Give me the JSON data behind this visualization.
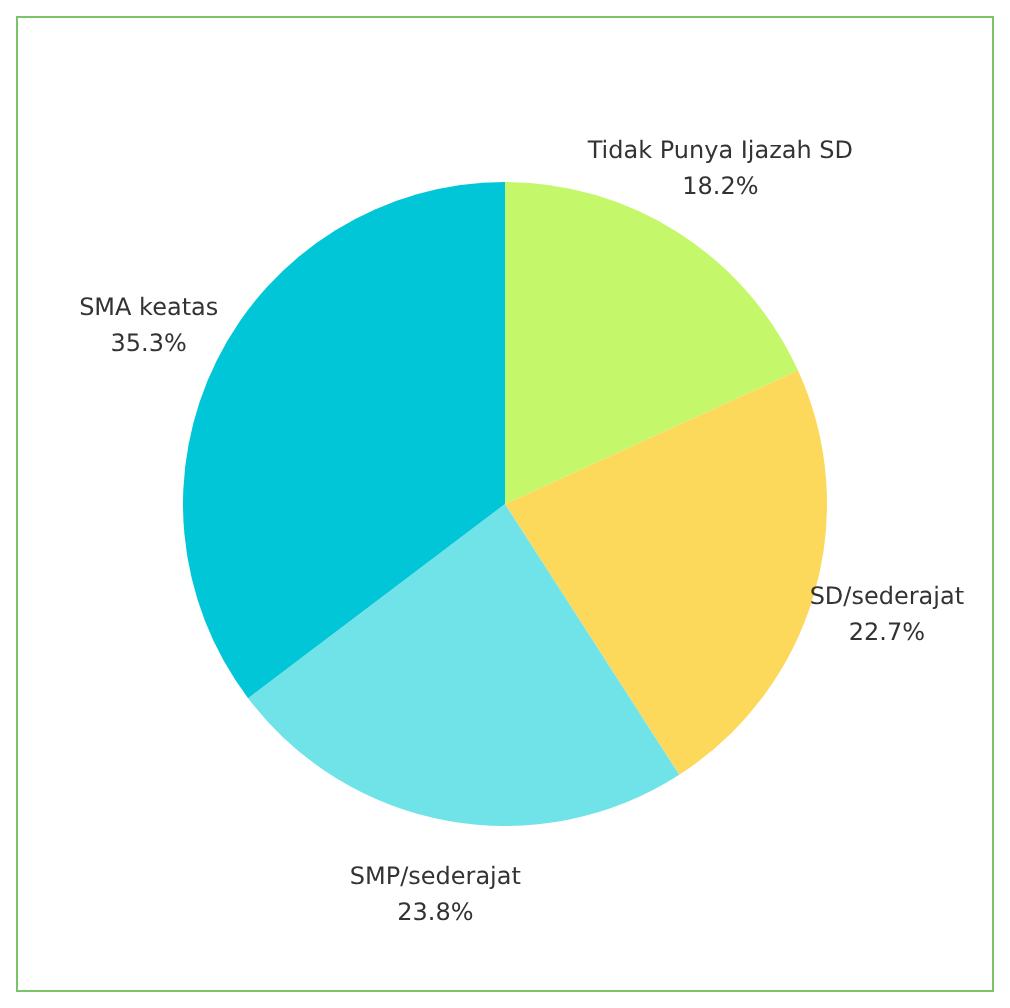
{
  "chart_data": {
    "type": "pie",
    "categories": [
      "Tidak Punya Ijazah SD",
      "SD/sederajat",
      "SMP/sederajat",
      "SMA keatas"
    ],
    "values": [
      18.2,
      22.7,
      23.8,
      35.3
    ],
    "colors": [
      "#c4f86a",
      "#fcd95a",
      "#6fe3e8",
      "#00c6d8"
    ],
    "value_labels": [
      "18.2%",
      "22.7%",
      "23.8%",
      "35.3%"
    ],
    "legend": false
  }
}
